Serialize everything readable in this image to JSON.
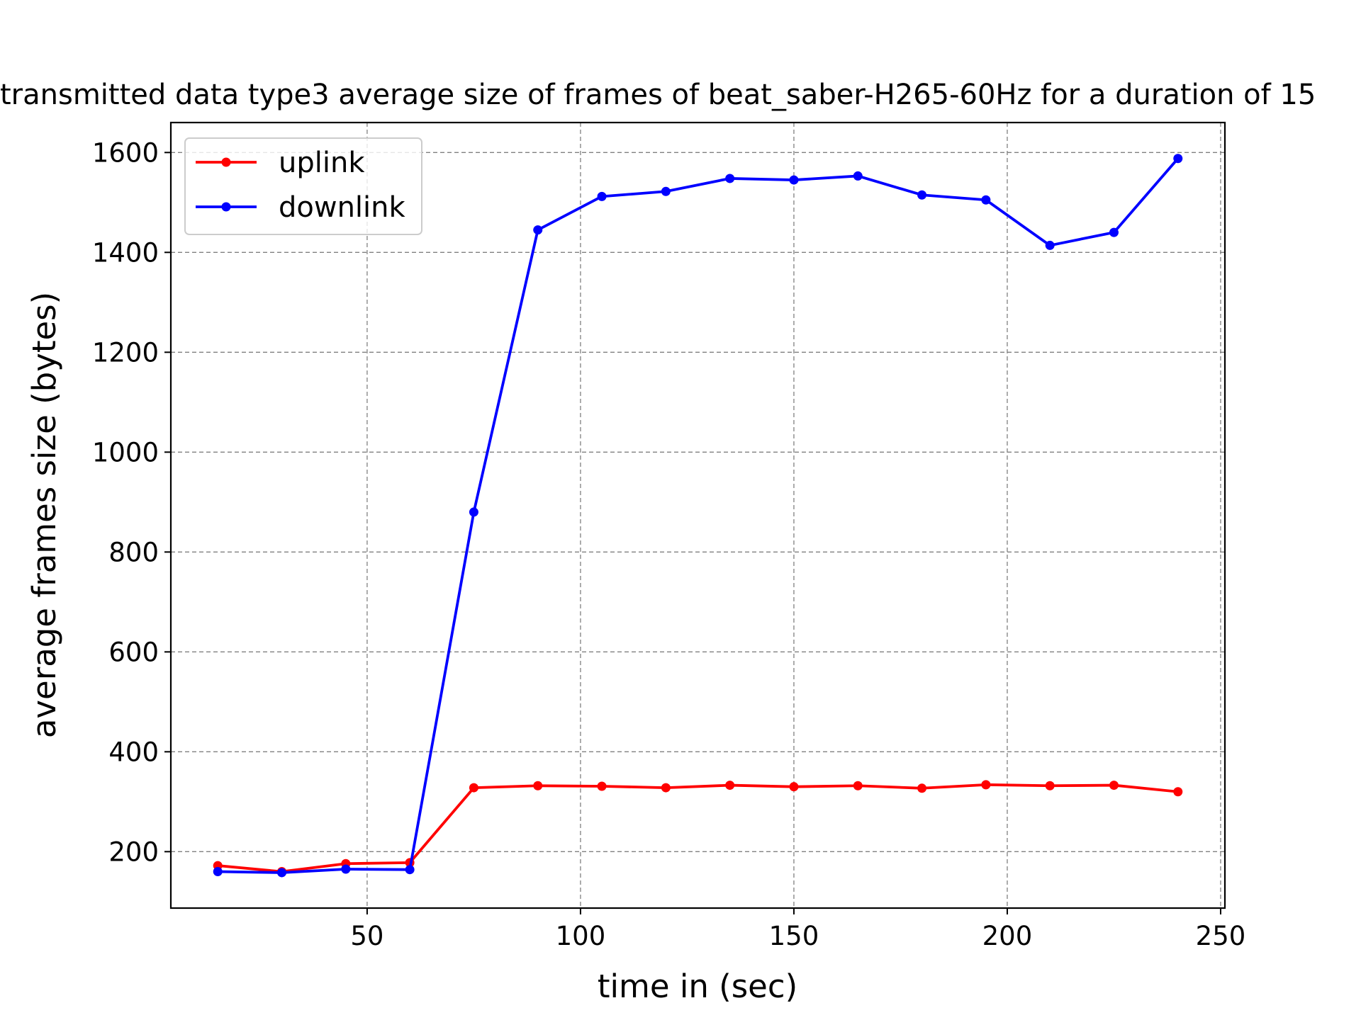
{
  "chart_data": {
    "type": "line",
    "title": "transmitted data type3 average size of frames of beat_saber-H265-60Hz for a duration of 15",
    "xlabel": "time in (sec)",
    "ylabel": "average frames size (bytes)",
    "xlim": [
      4,
      251
    ],
    "ylim": [
      87,
      1660
    ],
    "grid": true,
    "legend_position": "top-left",
    "x_ticks": [
      50,
      100,
      150,
      200,
      250
    ],
    "y_ticks": [
      200,
      400,
      600,
      800,
      1000,
      1200,
      1400,
      1600
    ],
    "x": [
      15,
      30,
      45,
      60,
      75,
      90,
      105,
      120,
      135,
      150,
      165,
      180,
      195,
      210,
      225,
      240
    ],
    "series": [
      {
        "name": "uplink",
        "color": "#ff0000",
        "values": [
          172,
          160,
          176,
          178,
          328,
          332,
          331,
          328,
          333,
          330,
          332,
          327,
          334,
          332,
          333,
          320
        ]
      },
      {
        "name": "downlink",
        "color": "#0000ff",
        "values": [
          160,
          158,
          165,
          164,
          880,
          1445,
          1512,
          1522,
          1548,
          1545,
          1553,
          1515,
          1505,
          1414,
          1440,
          1588
        ]
      }
    ]
  }
}
